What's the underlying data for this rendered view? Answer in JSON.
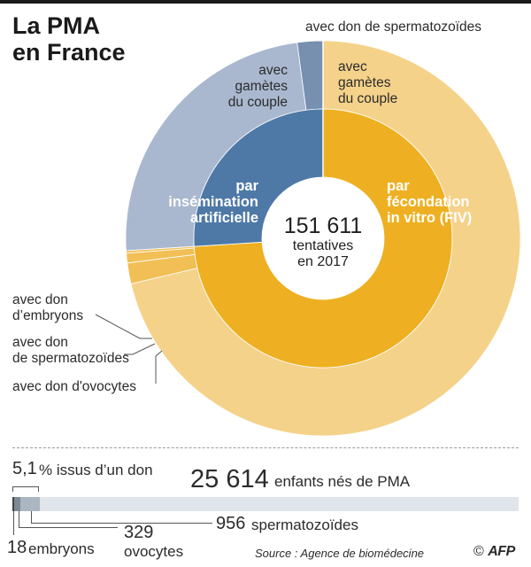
{
  "header": {
    "title_line1": "La PMA",
    "title_line2": "en France"
  },
  "chart_data": {
    "type": "pie",
    "title": "La PMA en France",
    "center": {
      "value": "151 611",
      "line1": "tentatives",
      "line2": "en 2017"
    },
    "inner": [
      {
        "name": "par insémination artificielle",
        "lines": [
          "par",
          "insémination",
          "artificielle"
        ],
        "value": 26,
        "color": "#4e79a7"
      },
      {
        "name": "par fécondation in vitro (FIV)",
        "lines": [
          "par",
          "fécondation",
          "in vitro (FIV)"
        ],
        "value": 74,
        "color": "#eeb022"
      }
    ],
    "outer": [
      {
        "name": "IA avec don de spermatozoïdes",
        "label": "avec don de spermatozoïdes",
        "value": 2.1,
        "color": "#7790b0"
      },
      {
        "name": "IA avec gamètes du couple",
        "lines": [
          "avec",
          "gamètes",
          "du couple"
        ],
        "value": 23.9,
        "color": "#a9b8cf"
      },
      {
        "name": "FIV avec don d'embryons",
        "label": "avec don d’embryons",
        "value": 0.2,
        "color": "#f1bf55"
      },
      {
        "name": "FIV avec don de spermatozoïdes",
        "label": "avec don de spermatozoïdes",
        "value": 0.8,
        "color": "#f1bf55"
      },
      {
        "name": "FIV avec don d'ovocytes",
        "label": "avec don d'ovocytes",
        "value": 1.7,
        "color": "#f1bf55"
      },
      {
        "name": "FIV avec gamètes du couple",
        "lines": [
          "avec",
          "gamètes",
          "du couple"
        ],
        "value": 71.3,
        "color": "#f5d28a"
      }
    ],
    "outer_labels": {
      "ia_sperm": "avec don de spermatozoïdes",
      "ia_couple": [
        "avec",
        "gamètes",
        "du couple"
      ],
      "fiv_couple": [
        "avec",
        "gamètes",
        "du couple"
      ],
      "embryons": [
        "avec don",
        "d’embryons"
      ],
      "sperm": [
        "avec don",
        "de spermatozoïdes"
      ],
      "ovocytes": "avec don d'ovocytes"
    },
    "births": {
      "total_value": "25 614",
      "total_label": "enfants nés de PMA",
      "don_percent": "5,1",
      "don_label": "% issus d’un don",
      "breakdown": [
        {
          "name": "embryons",
          "value": "18",
          "count": 18,
          "color": "#444444"
        },
        {
          "name": "ovocytes",
          "value": "329",
          "count": 329,
          "color": "#7d8a95"
        },
        {
          "name": "spermatozoïdes",
          "value": "956",
          "count": 956,
          "color": "#aab6c1"
        }
      ],
      "total_count": 25614
    }
  },
  "footer": {
    "source": "Source : Agence de biomédecine",
    "copyright": "©",
    "agency": "AFP"
  },
  "colors": {
    "ia_dark": "#4e79a7",
    "ia_light": "#a9b8cf",
    "fiv_dark": "#eeb022",
    "fiv_light": "#f5d28a",
    "bar_bg": "#dfe5ea"
  }
}
